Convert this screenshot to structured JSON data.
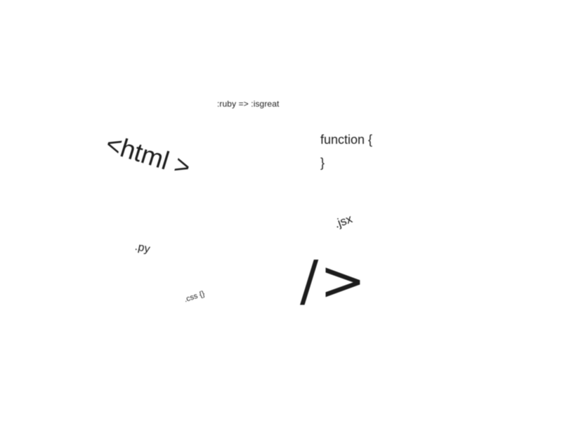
{
  "words": {
    "ruby": ":ruby => :isgreat",
    "html": "<html >",
    "function": "function {",
    "brace": "}",
    "jsx": ".jsx",
    "py": ".py",
    "css": ".css {}",
    "slash": "/>"
  }
}
